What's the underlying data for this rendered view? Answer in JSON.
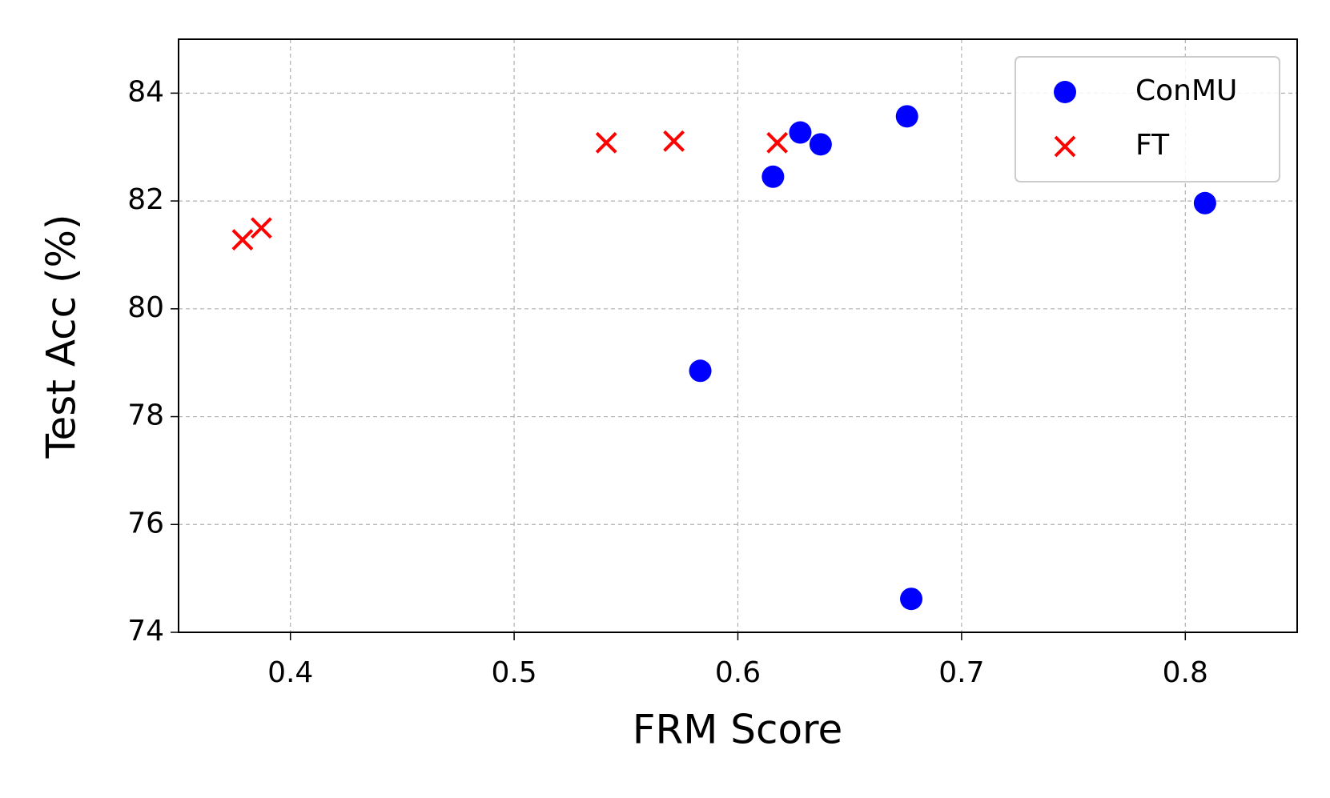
{
  "chart_data": {
    "type": "scatter",
    "xlabel": "FRM Score",
    "ylabel": "Test Acc (%)",
    "xlim": [
      0.35,
      0.85
    ],
    "ylim": [
      74,
      85
    ],
    "xticks": [
      0.4,
      0.5,
      0.6,
      0.7,
      0.8
    ],
    "yticks": [
      74,
      76,
      78,
      80,
      82,
      84
    ],
    "grid": true,
    "legend": "upper right",
    "series": [
      {
        "name": "ConMU",
        "color": "#0000ff",
        "marker": "circle",
        "x": [
          0.5832,
          0.6157,
          0.6279,
          0.637,
          0.6756,
          0.6775,
          0.8088
        ],
        "values": [
          78.85,
          82.45,
          83.27,
          83.05,
          83.57,
          74.62,
          81.96
        ]
      },
      {
        "name": "FT",
        "color": "#ff0000",
        "marker": "x",
        "x": [
          0.3786,
          0.387,
          0.5412,
          0.5714,
          0.6176
        ],
        "values": [
          81.28,
          81.5,
          83.08,
          83.11,
          83.08
        ]
      }
    ]
  }
}
